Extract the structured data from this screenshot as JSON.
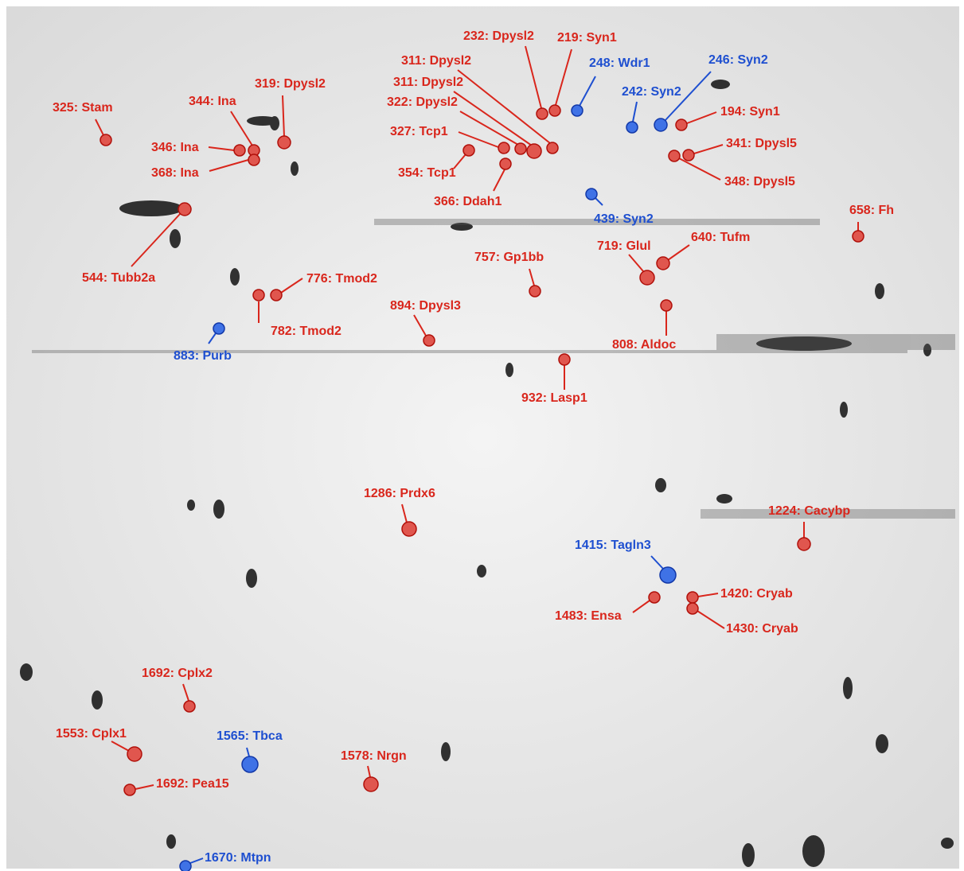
{
  "labels": [
    "325: Stam",
    "344: Ina",
    "319: Dpysl2",
    "346: Ina",
    "368: Ina",
    "544: Tubb2a",
    "776: Tmod2",
    "782: Tmod2",
    "883: Purb",
    "232: Dpysl2",
    "219: Syn1",
    "311: Dpysl2",
    "248: Wdr1",
    "246: Syn2",
    "311: Dpysl2",
    "242: Syn2",
    "322: Dpysl2",
    "194: Syn1",
    "327: Tcp1",
    "354: Tcp1",
    "341: Dpysl5",
    "348: Dpysl5",
    "366: Ddah1",
    "439: Syn2",
    "658: Fh",
    "640: Tufm",
    "719: Glul",
    "757: Gp1bb",
    "894: Dpysl3",
    "808: Aldoc",
    "932: Lasp1",
    "1286: Prdx6",
    "1224: Cacybp",
    "1415: Tagln3",
    "1420: Cryab",
    "1483: Ensa",
    "1430: Cryab",
    "1692: Cplx2",
    "1553: Cplx1",
    "1565: Tbca",
    "1578: Nrgn",
    "1692: Pea15",
    "1670: Mtpn"
  ]
}
